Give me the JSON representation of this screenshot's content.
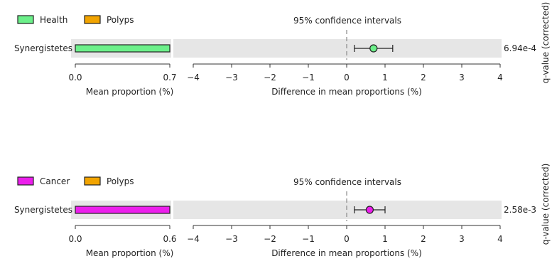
{
  "colors": {
    "health": "#6cf08a",
    "polyps": "#f2a400",
    "cancer": "#ec1eec",
    "panel_bg": "#e6e6e6",
    "axis": "#333333"
  },
  "chart_data": [
    {
      "type": "extended-error-bar",
      "legend": [
        {
          "name": "Health",
          "color": "#6cf08a"
        },
        {
          "name": "Polyps",
          "color": "#f2a400"
        }
      ],
      "feature": "Synergistetes",
      "bar_series": {
        "name": "Health",
        "mean_proportion": 0.7,
        "color": "#6cf08a"
      },
      "bar_axis": {
        "ticks": [
          "0.0",
          "0.7"
        ],
        "label": "Mean proportion (%)",
        "xlim": [
          0,
          0.7
        ]
      },
      "ci_title": "95% confidence intervals",
      "ci": {
        "mean_diff": 0.7,
        "lower": 0.2,
        "upper": 1.2,
        "color": "#6cf08a"
      },
      "diff_axis": {
        "ticks": [
          "−4",
          "−3",
          "−2",
          "−1",
          "0",
          "1",
          "2",
          "3",
          "4"
        ],
        "label": "Difference in mean proportions (%)",
        "xlim": [
          -4,
          4
        ]
      },
      "q_value": "6.94e-4",
      "q_label": "q-value (corrected)"
    },
    {
      "type": "extended-error-bar",
      "legend": [
        {
          "name": "Cancer",
          "color": "#ec1eec"
        },
        {
          "name": "Polyps",
          "color": "#f2a400"
        }
      ],
      "feature": "Synergistetes",
      "bar_series": {
        "name": "Cancer",
        "mean_proportion": 0.6,
        "color": "#ec1eec"
      },
      "bar_axis": {
        "ticks": [
          "0.0",
          "0.6"
        ],
        "label": "Mean proportion (%)",
        "xlim": [
          0,
          0.6
        ]
      },
      "ci_title": "95% confidence intervals",
      "ci": {
        "mean_diff": 0.6,
        "lower": 0.2,
        "upper": 1.0,
        "color": "#ec1eec"
      },
      "diff_axis": {
        "ticks": [
          "−4",
          "−3",
          "−2",
          "−1",
          "0",
          "1",
          "2",
          "3",
          "4"
        ],
        "label": "Difference in mean proportions (%)",
        "xlim": [
          -4,
          4
        ]
      },
      "q_value": "2.58e-3",
      "q_label": "q-value (corrected)"
    }
  ]
}
